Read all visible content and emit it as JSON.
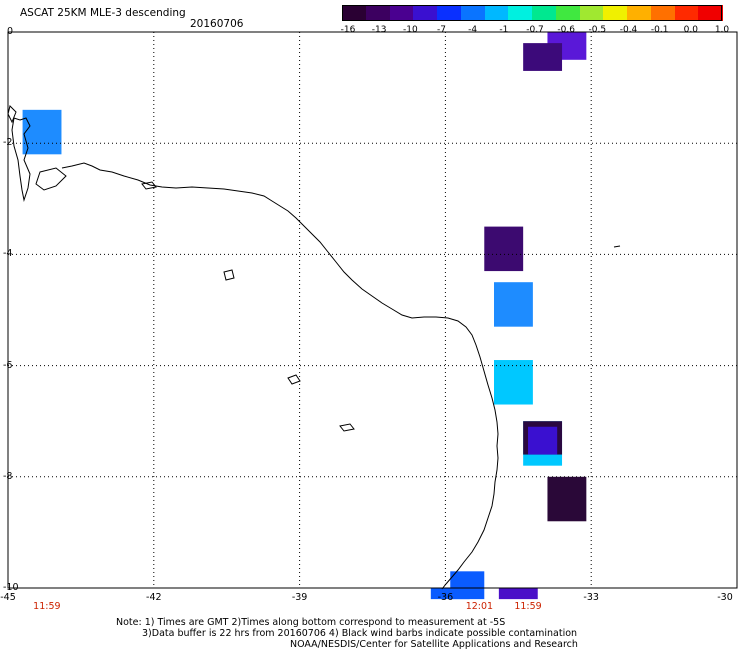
{
  "header": {
    "title": "ASCAT 25KM MLE-3 descending",
    "date": "20160706"
  },
  "colorbar": {
    "colors": [
      "#2a0033",
      "#3c0060",
      "#4a0090",
      "#3a10d0",
      "#0a30ff",
      "#0a74ff",
      "#00b8ff",
      "#00f0e0",
      "#00e890",
      "#40e840",
      "#a0e830",
      "#f0f000",
      "#ffb000",
      "#ff7000",
      "#ff2a00",
      "#f00000"
    ],
    "labels": [
      "-16",
      "-13",
      "-10",
      "-7",
      "-4",
      "-1",
      "-0.7",
      "-0.6",
      "-0.5",
      "-0.4",
      "-0.1",
      "0.0",
      "1.0"
    ]
  },
  "axes": {
    "lat_labels": [
      "0",
      "-2",
      "-4",
      "-6",
      "-8",
      "-10"
    ],
    "lon_labels": [
      "-45",
      "-42",
      "-39",
      "-36",
      "-33",
      "-30"
    ]
  },
  "time_labels": [
    "11:59",
    "12:01",
    "11:59"
  ],
  "notes": {
    "line1": "Note: 1) Times are GMT 2)Times along bottom correspond to measurement at -5S",
    "line2": "3)Data buffer is 22 hrs from 20160706 4) Black wind barbs indicate possible contamination",
    "line3": "NOAA/NESDIS/Center for Satellite Applications and Research"
  },
  "cells": [
    {
      "lon": -44.7,
      "lat": -1.4,
      "lon2": -43.9,
      "lat2": -2.2,
      "color": "#1e8cff"
    },
    {
      "lon": -33.9,
      "lat": 0.0,
      "lon2": -33.1,
      "lat2": -0.5,
      "color": "#5a18d8"
    },
    {
      "lon": -34.4,
      "lat": -0.2,
      "lon2": -33.6,
      "lat2": -0.7,
      "color": "#3c0a7a"
    },
    {
      "lon": -35.2,
      "lat": -3.5,
      "lon2": -34.4,
      "lat2": -4.3,
      "color": "#3c0a70"
    },
    {
      "lon": -35.0,
      "lat": -4.5,
      "lon2": -34.2,
      "lat2": -5.3,
      "color": "#1e8cff"
    },
    {
      "lon": -35.0,
      "lat": -5.9,
      "lon2": -34.2,
      "lat2": -6.7,
      "color": "#00c8ff"
    },
    {
      "lon": -34.4,
      "lat": -7.0,
      "lon2": -33.6,
      "lat2": -7.8,
      "color": "#00c8ff"
    },
    {
      "lon": -34.4,
      "lat": -7.0,
      "lon2": -33.6,
      "lat2": -7.6,
      "color": "#2a0840"
    },
    {
      "lon": -34.3,
      "lat": -7.1,
      "lon2": -33.7,
      "lat2": -7.6,
      "color": "#3a10d0"
    },
    {
      "lon": -33.9,
      "lat": -8.0,
      "lon2": -33.1,
      "lat2": -8.8,
      "color": "#2a0838"
    },
    {
      "lon": -35.9,
      "lat": -9.7,
      "lon2": -35.2,
      "lat2": -10.2,
      "color": "#0a5cff"
    },
    {
      "lon": -36.3,
      "lat": -10.0,
      "lon2": -35.5,
      "lat2": -10.2,
      "color": "#0a5cff"
    },
    {
      "lon": -34.9,
      "lat": -10.0,
      "lon2": -34.1,
      "lat2": -10.2,
      "color": "#4a10c8"
    }
  ]
}
